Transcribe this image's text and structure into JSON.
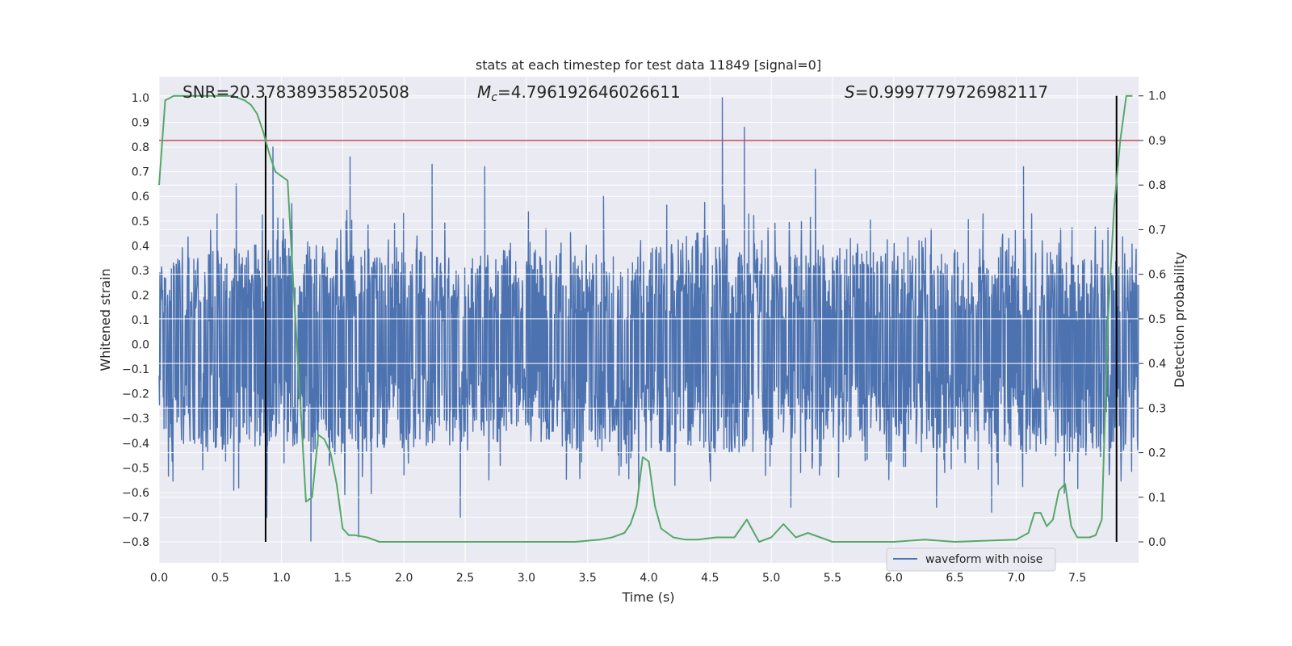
{
  "chart_data": {
    "type": "line",
    "title": "stats at each timestep for test data 11849 [signal=0]",
    "xlabel": "Time (s)",
    "ylabel": "Whitened strain",
    "y2label": "Detection probability",
    "xlim": [
      0.0,
      8.0
    ],
    "ylim": [
      -0.885,
      1.085
    ],
    "y2lim": [
      -0.047,
      1.043
    ],
    "xticks": [
      "0.0",
      "0.5",
      "1.0",
      "1.5",
      "2.0",
      "2.5",
      "3.0",
      "3.5",
      "4.0",
      "4.5",
      "5.0",
      "5.5",
      "6.0",
      "6.5",
      "7.0",
      "7.5"
    ],
    "yticks": [
      "1.0",
      "0.9",
      "0.8",
      "0.7",
      "0.6",
      "0.5",
      "0.4",
      "0.3",
      "0.2",
      "0.1",
      "0.0",
      "−0.1",
      "−0.2",
      "−0.3",
      "−0.4",
      "−0.5",
      "−0.6",
      "−0.7",
      "−0.8"
    ],
    "y2ticks": [
      "0.0",
      "0.1",
      "0.2",
      "0.3",
      "0.4",
      "0.5",
      "0.6",
      "0.7",
      "0.8",
      "0.9",
      "1.0"
    ],
    "grid": true,
    "legend_position": "lower-right",
    "annotations": {
      "snr": "SNR=20.378389358520508",
      "mc_symbol": "M",
      "mc_sub": "c",
      "mc_value": "=4.796192646026611",
      "s_symbol": "S",
      "s_value": "=0.9997779726982117"
    },
    "series": [
      {
        "name": "waveform with noise",
        "axis": "left",
        "color": "#4c72b0",
        "style": "dense-noise",
        "envelope_x": [
          0.0,
          0.5,
          1.0,
          1.5,
          2.0,
          2.5,
          3.0,
          3.5,
          4.0,
          4.5,
          5.0,
          5.5,
          6.0,
          6.5,
          7.0,
          7.5,
          8.0
        ],
        "envelope_upper": [
          0.45,
          0.55,
          0.6,
          0.55,
          0.55,
          0.5,
          0.55,
          0.5,
          0.55,
          0.65,
          0.5,
          0.55,
          0.55,
          0.55,
          0.55,
          0.5,
          0.45
        ],
        "envelope_lower": [
          -0.55,
          -0.6,
          -0.6,
          -0.62,
          -0.6,
          -0.55,
          -0.55,
          -0.6,
          -0.6,
          -0.62,
          -0.6,
          -0.55,
          -0.55,
          -0.6,
          -0.6,
          -0.65,
          -0.6
        ],
        "peaks_x": [
          0.63,
          0.88,
          0.93,
          1.24,
          1.56,
          1.63,
          2.23,
          2.46,
          2.66,
          3.63,
          4.6,
          4.78,
          5.16,
          5.36,
          6.35,
          6.8,
          7.06
        ],
        "peaks_y": [
          0.65,
          -0.7,
          0.8,
          -0.8,
          0.76,
          -0.78,
          0.73,
          -0.7,
          0.72,
          0.6,
          1.0,
          0.88,
          -0.66,
          0.71,
          -0.66,
          -0.68,
          0.72
        ]
      },
      {
        "name": "",
        "axis": "right",
        "color": "#55a868",
        "x": [
          0.0,
          0.05,
          0.12,
          0.2,
          0.3,
          0.4,
          0.5,
          0.6,
          0.7,
          0.75,
          0.8,
          0.85,
          0.9,
          0.95,
          1.0,
          1.05,
          1.1,
          1.15,
          1.2,
          1.25,
          1.3,
          1.35,
          1.4,
          1.45,
          1.5,
          1.55,
          1.6,
          1.7,
          1.8,
          2.0,
          2.5,
          3.0,
          3.4,
          3.6,
          3.7,
          3.8,
          3.85,
          3.9,
          3.95,
          4.0,
          4.05,
          4.1,
          4.2,
          4.3,
          4.4,
          4.55,
          4.7,
          4.8,
          4.9,
          5.0,
          5.1,
          5.2,
          5.3,
          5.4,
          5.5,
          6.0,
          6.25,
          6.5,
          7.0,
          7.1,
          7.15,
          7.2,
          7.25,
          7.3,
          7.35,
          7.4,
          7.45,
          7.5,
          7.55,
          7.6,
          7.65,
          7.7,
          7.75,
          7.8,
          7.85,
          7.9,
          7.95
        ],
        "y": [
          0.8,
          0.99,
          1.0,
          1.0,
          1.0,
          1.0,
          1.0,
          1.0,
          0.99,
          0.98,
          0.96,
          0.92,
          0.87,
          0.83,
          0.82,
          0.81,
          0.56,
          0.33,
          0.09,
          0.1,
          0.24,
          0.23,
          0.2,
          0.13,
          0.03,
          0.015,
          0.015,
          0.01,
          0.0,
          0.0,
          0.0,
          0.0,
          0.0,
          0.005,
          0.01,
          0.02,
          0.04,
          0.08,
          0.19,
          0.18,
          0.08,
          0.03,
          0.01,
          0.005,
          0.005,
          0.01,
          0.01,
          0.05,
          0.0,
          0.01,
          0.04,
          0.01,
          0.02,
          0.01,
          0.0,
          0.0,
          0.005,
          0.0,
          0.005,
          0.02,
          0.065,
          0.065,
          0.035,
          0.05,
          0.115,
          0.13,
          0.035,
          0.01,
          0.01,
          0.01,
          0.015,
          0.05,
          0.5,
          0.75,
          0.9,
          1.0,
          1.0
        ]
      }
    ],
    "hlines": [
      {
        "axis": "right",
        "y": 0.9,
        "color": "#c44e52"
      }
    ],
    "vlines": [
      {
        "x": 0.87,
        "color": "#000000"
      },
      {
        "x": 7.82,
        "color": "#000000"
      }
    ],
    "legend": [
      {
        "label": "waveform with noise",
        "color": "#4c72b0"
      }
    ],
    "colors": {
      "plot_bg": "#eaeaf2",
      "grid": "#ffffff",
      "waveform": "#4c72b0",
      "probability": "#55a868",
      "threshold": "#c44e52",
      "vline": "#000000"
    }
  }
}
